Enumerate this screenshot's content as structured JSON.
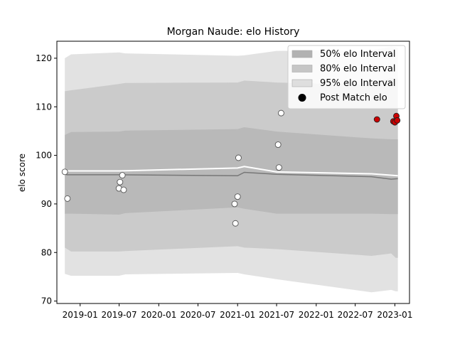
{
  "chart_data": {
    "type": "line",
    "title": "Morgan Naude: elo History",
    "xlabel": "",
    "ylabel": "elo score",
    "xlim": [
      "2018-09-15",
      "2023-03-10"
    ],
    "ylim": [
      69.5,
      123.5
    ],
    "x_ticks": [
      "2019-01",
      "2019-07",
      "2020-01",
      "2020-07",
      "2021-01",
      "2021-07",
      "2022-01",
      "2022-07",
      "2023-01"
    ],
    "x_tick_dates": [
      "2019-01-01",
      "2019-07-01",
      "2020-01-01",
      "2020-07-01",
      "2021-01-01",
      "2021-07-01",
      "2022-01-01",
      "2022-07-01",
      "2023-01-01"
    ],
    "y_ticks": [
      70,
      80,
      90,
      100,
      110,
      120
    ],
    "legend": {
      "placement": "upper right",
      "entries": [
        "50% elo Interval",
        "80% elo Interval",
        "95% elo Interval",
        "Post Match elo"
      ]
    },
    "bands": [
      {
        "name": "95% elo Interval",
        "color": "#e2e2e2",
        "x": [
          "2018-10-22",
          "2018-11-20",
          "2019-07-01",
          "2019-07-30",
          "2021-01-01",
          "2021-02-01",
          "2021-07-01",
          "2022-09-15",
          "2022-12-15",
          "2023-01-05",
          "2023-01-15"
        ],
        "upper": [
          120.0,
          120.8,
          121.2,
          121.0,
          120.5,
          120.6,
          121.5,
          121.6,
          122.4,
          122.3,
          122.1
        ],
        "lower": [
          75.6,
          75.2,
          75.2,
          75.5,
          75.8,
          75.5,
          74.5,
          71.8,
          72.3,
          72.0,
          72.0
        ]
      },
      {
        "name": "80% elo Interval",
        "color": "#cbcbcb",
        "x": [
          "2018-10-22",
          "2018-11-20",
          "2019-07-01",
          "2019-07-30",
          "2021-01-01",
          "2021-02-01",
          "2021-07-01",
          "2022-09-15",
          "2022-12-15",
          "2023-01-05",
          "2023-01-15"
        ],
        "upper": [
          113.2,
          113.4,
          114.7,
          114.9,
          115.0,
          115.4,
          115.0,
          114.5,
          116.0,
          115.8,
          115.8
        ],
        "lower": [
          81.0,
          80.2,
          80.2,
          80.3,
          81.3,
          81.0,
          80.7,
          79.3,
          79.8,
          78.9,
          78.9
        ]
      },
      {
        "name": "50% elo Interval",
        "color": "#b9b9b9",
        "x": [
          "2018-10-22",
          "2018-11-20",
          "2019-07-01",
          "2019-07-30",
          "2021-01-01",
          "2021-02-01",
          "2021-07-01",
          "2022-09-15",
          "2022-12-15",
          "2023-01-05",
          "2023-01-15"
        ],
        "upper": [
          104.2,
          104.8,
          104.9,
          105.1,
          105.4,
          105.8,
          104.9,
          103.5,
          103.3,
          103.3,
          103.3
        ],
        "lower": [
          88.0,
          88.0,
          87.8,
          88.1,
          89.3,
          89.0,
          88.0,
          88.0,
          87.9,
          87.9,
          87.9
        ]
      }
    ],
    "lines": [
      {
        "role": "mean",
        "color": "#ffffff",
        "x": [
          "2018-10-22",
          "2018-11-01",
          "2019-07-01",
          "2021-01-01",
          "2021-02-01",
          "2021-07-01",
          "2022-09-15",
          "2023-01-15"
        ],
        "y": [
          96.6,
          96.8,
          96.8,
          97.4,
          97.7,
          96.6,
          96.2,
          95.8
        ]
      },
      {
        "role": "median",
        "color": "#777777",
        "x": [
          "2018-10-22",
          "2018-11-01",
          "2019-07-01",
          "2021-01-01",
          "2021-02-01",
          "2021-07-01",
          "2022-09-15",
          "2022-12-15",
          "2023-01-15"
        ],
        "y": [
          96.2,
          96.0,
          96.0,
          95.8,
          96.5,
          96.1,
          95.6,
          95.1,
          95.2
        ]
      }
    ],
    "series": [
      {
        "name": "Post Match elo",
        "color": "#cc0000",
        "x": [
          "2022-10-10",
          "2022-12-25",
          "2023-01-01",
          "2023-01-08",
          "2023-01-12"
        ],
        "y": [
          107.4,
          107.0,
          106.8,
          108.1,
          107.2
        ]
      },
      {
        "color": "#ffffff",
        "x": [
          "2018-10-22",
          "2018-11-03",
          "2019-06-30",
          "2019-07-05",
          "2019-07-16",
          "2019-07-22",
          "2020-12-18",
          "2020-12-22",
          "2021-01-01",
          "2021-01-05",
          "2021-07-08",
          "2021-07-12",
          "2021-07-22"
        ],
        "y": [
          96.6,
          91.1,
          93.2,
          94.5,
          95.9,
          92.9,
          90.0,
          86.0,
          91.5,
          99.5,
          102.2,
          97.5,
          108.7
        ]
      }
    ]
  }
}
